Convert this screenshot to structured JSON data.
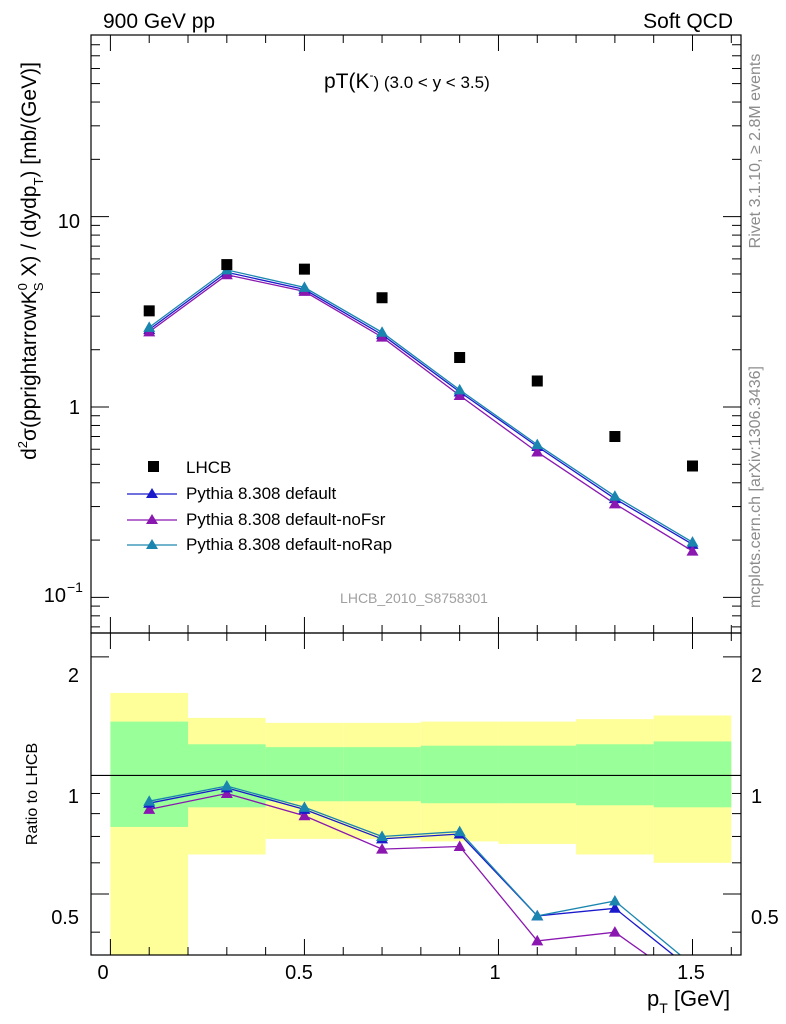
{
  "header": {
    "left": "900 GeV pp",
    "right": "Soft QCD"
  },
  "side_labels": {
    "rivet": "Rivet 3.1.10, ≥ 2.8M events",
    "mcplots": "mcplots.cern.ch [arXiv:1306.3436]"
  },
  "watermark": "LHCB_2010_S8758301",
  "colors": {
    "data": "#000000",
    "default": "#1a1acc",
    "noFsr": "#8a17b0",
    "noRap": "#1a86b0",
    "band_stat": "#99ff99",
    "band_total": "#ffff99"
  },
  "chart_data": [
    {
      "type": "line",
      "title_main": "pT(K",
      "title_sup": "-",
      "title_tail": ") (3.0 < y < 3.5)",
      "ylabel": "d²σ(pprightarrowK⁰S X) / (dydp_T) [mb/(GeV)]",
      "ylabel_parts": {
        "a": "d",
        "a_sup": "2",
        "b": "σ(pprightarrowK",
        "b_sup": "0",
        "b_sub": "S",
        "c": " X) / (dydp",
        "c_sub": "T",
        "d": ") [mb/(GeV)]"
      },
      "yscale": "log",
      "ylim": [
        0.065,
        90
      ],
      "xlim": [
        -0.05,
        1.625
      ],
      "ytick_labels": {
        "t10": "10",
        "t1": "1",
        "t01_base": "10",
        "t01_exp": "−1"
      },
      "x": [
        0.1,
        0.3,
        0.5,
        0.7,
        0.9,
        1.1,
        1.3,
        1.5
      ],
      "legend_position": "lower-left",
      "series": [
        {
          "name": "LHCB",
          "marker": "square",
          "values": [
            3.2,
            5.6,
            5.3,
            3.75,
            1.82,
            1.37,
            0.7,
            0.49
          ]
        },
        {
          "name": "Pythia 8.308 default",
          "marker": "triangle",
          "values": [
            2.55,
            5.1,
            4.15,
            2.4,
            1.2,
            0.62,
            0.33,
            0.19
          ]
        },
        {
          "name": "Pythia 8.308 default-noFsr",
          "marker": "triangle",
          "values": [
            2.48,
            4.95,
            4.05,
            2.33,
            1.15,
            0.58,
            0.31,
            0.175
          ]
        },
        {
          "name": "Pythia 8.308 default-noRap",
          "marker": "triangle",
          "values": [
            2.62,
            5.25,
            4.25,
            2.47,
            1.23,
            0.635,
            0.34,
            0.195
          ]
        }
      ]
    },
    {
      "type": "line",
      "ylabel": "Ratio to LHCB",
      "xlabel_main": "p",
      "xlabel_sub": "T",
      "xlabel_tail": " [GeV]",
      "xlim": [
        -0.05,
        1.625
      ],
      "ylim": [
        0.35,
        2.3
      ],
      "xtick_labels": [
        "0",
        "0.5",
        "1",
        "1.5"
      ],
      "ytick_labels": [
        "0.5",
        "1",
        "2"
      ],
      "bins": [
        [
          0.0,
          0.2
        ],
        [
          0.2,
          0.4
        ],
        [
          0.4,
          0.6
        ],
        [
          0.6,
          0.8
        ],
        [
          0.8,
          1.0
        ],
        [
          1.0,
          1.2
        ],
        [
          1.2,
          1.4
        ],
        [
          1.4,
          1.6
        ]
      ],
      "band_stat": [
        [
          0.74,
          1.37
        ],
        [
          0.83,
          1.2
        ],
        [
          0.86,
          1.18
        ],
        [
          0.86,
          1.18
        ],
        [
          0.85,
          1.19
        ],
        [
          0.85,
          1.19
        ],
        [
          0.84,
          1.2
        ],
        [
          0.83,
          1.22
        ]
      ],
      "band_total": [
        [
          0.3,
          1.62
        ],
        [
          0.63,
          1.4
        ],
        [
          0.69,
          1.36
        ],
        [
          0.69,
          1.36
        ],
        [
          0.68,
          1.37
        ],
        [
          0.67,
          1.37
        ],
        [
          0.63,
          1.39
        ],
        [
          0.6,
          1.42
        ]
      ],
      "x": [
        0.1,
        0.3,
        0.5,
        0.7,
        0.9,
        1.1,
        1.3,
        1.5
      ],
      "series": [
        {
          "name": "Pythia 8.308 default",
          "values": [
            0.85,
            0.93,
            0.82,
            0.69,
            0.71,
            0.44,
            0.46,
            0.32
          ]
        },
        {
          "name": "Pythia 8.308 default-noFsr",
          "values": [
            0.82,
            0.9,
            0.79,
            0.65,
            0.66,
            0.38,
            0.4,
            0.29
          ]
        },
        {
          "name": "Pythia 8.308 default-noRap",
          "values": [
            0.86,
            0.94,
            0.83,
            0.7,
            0.72,
            0.44,
            0.48,
            0.33
          ]
        }
      ]
    }
  ]
}
